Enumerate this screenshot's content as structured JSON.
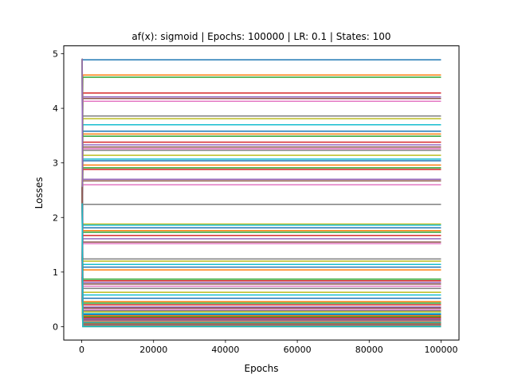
{
  "chart_data": {
    "type": "line",
    "title": "af(x): sigmoid | Epochs: 100000 | LR: 0.1 | States: 100",
    "xlabel": "Epochs",
    "ylabel": "Losses",
    "xlim": [
      -5000,
      105000
    ],
    "ylim": [
      -0.245,
      5.145
    ],
    "x_ticks": [
      0,
      20000,
      40000,
      60000,
      80000,
      100000
    ],
    "x_tick_labels": [
      "0",
      "20000",
      "40000",
      "60000",
      "80000",
      "100000"
    ],
    "y_ticks": [
      0,
      1,
      2,
      3,
      4,
      5
    ],
    "y_tick_labels": [
      "0",
      "1",
      "2",
      "3",
      "4",
      "5"
    ],
    "grid": false,
    "legend": "none",
    "colors": [
      "#1f77b4",
      "#ff7f0e",
      "#2ca02c",
      "#d62728",
      "#9467bd",
      "#8c564b",
      "#e377c2",
      "#7f7f7f",
      "#bcbd22",
      "#17becf"
    ],
    "x_start": 0,
    "x_end": 100000,
    "initial_losses": [
      4.9,
      2.55,
      1.2,
      0.9,
      0.45,
      2.25
    ],
    "final_losses": [
      4.89,
      4.61,
      4.57,
      4.28,
      4.21,
      4.18,
      4.13,
      3.86,
      3.81,
      3.7,
      3.58,
      3.53,
      3.49,
      3.38,
      3.33,
      3.29,
      3.26,
      3.23,
      3.14,
      3.07,
      3.04,
      2.96,
      2.91,
      2.88,
      2.7,
      2.67,
      2.6,
      2.24,
      1.88,
      1.86,
      1.81,
      1.76,
      1.73,
      1.67,
      1.61,
      1.55,
      1.52,
      1.24,
      1.2,
      1.14,
      1.09,
      1.04,
      0.87,
      0.84,
      0.81,
      0.78,
      0.74,
      0.7,
      0.63,
      0.58,
      0.52,
      0.46,
      0.43,
      0.4,
      0.36,
      0.34,
      0.31,
      0.29,
      0.27,
      0.24,
      0.22,
      0.2,
      0.18,
      0.16,
      0.14,
      0.12,
      0.1,
      0.09,
      0.08,
      0.07,
      0.06,
      0.05,
      0.04,
      0.035,
      0.03,
      0.025,
      0.02,
      0.015,
      0.012,
      0.01,
      0.008,
      0.006,
      0.005,
      0.004,
      0.003,
      0.002,
      0.0015,
      0.001,
      0.0008,
      0.0005
    ]
  }
}
